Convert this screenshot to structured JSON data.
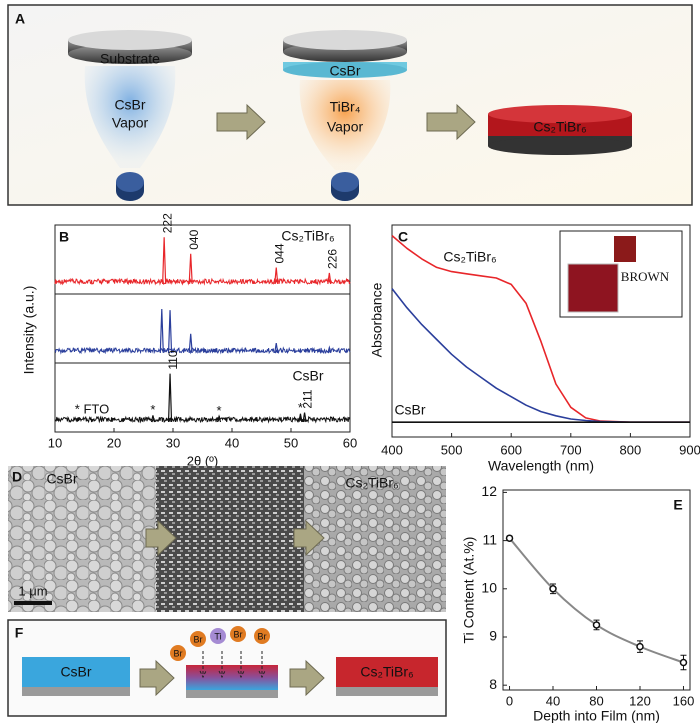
{
  "panel_a": {
    "label": "A",
    "substrate": "Substrate",
    "vapor_1": [
      "CsBr",
      "Vapor"
    ],
    "layer": "CsBr",
    "vapor_2": [
      "TiBr₄",
      "Vapor"
    ],
    "product": "Cs₂TiBr₆"
  },
  "panel_b": {
    "label": "B",
    "type": "line",
    "x_label": "2θ (º)",
    "y_label": "Intensity (a.u.)",
    "xlim": [
      10,
      60
    ],
    "xticks": [
      10,
      20,
      30,
      40,
      50,
      60
    ],
    "note": "* FTO",
    "traces": [
      {
        "name": "Cs₂TiBr₆",
        "color": "#e8262a",
        "peaks": [
          {
            "x": 28.5,
            "height": 0.85,
            "label": "222"
          },
          {
            "x": 33.0,
            "height": 0.55,
            "label": "040"
          },
          {
            "x": 47.5,
            "height": 0.3,
            "label": "044"
          },
          {
            "x": 56.5,
            "height": 0.2,
            "label": "226"
          }
        ]
      },
      {
        "color": "#2b3f9c",
        "peaks": [
          {
            "x": 28.1,
            "height": 0.8
          },
          {
            "x": 29.5,
            "height": 0.78
          },
          {
            "x": 33.0,
            "height": 0.35
          },
          {
            "x": 47.5,
            "height": 0.18
          },
          {
            "x": 56.5,
            "height": 0.1
          }
        ]
      },
      {
        "name": "CsBr",
        "color": "#111111",
        "peaks": [
          {
            "x": 26.6,
            "height": 0.12,
            "label": "*"
          },
          {
            "x": 29.5,
            "height": 0.88,
            "label": "110"
          },
          {
            "x": 37.8,
            "height": 0.1,
            "label": "*"
          },
          {
            "x": 51.6,
            "height": 0.15,
            "label": "*"
          },
          {
            "x": 52.3,
            "height": 0.17,
            "label": "211"
          }
        ]
      }
    ]
  },
  "panel_c": {
    "label": "C",
    "type": "line",
    "x_label": "Wavelength (nm)",
    "y_label": "Absorbance",
    "xlim": [
      400,
      900
    ],
    "xticks": [
      400,
      500,
      600,
      700,
      800,
      900
    ],
    "ylim": [
      0,
      1
    ],
    "inset_text": "BROWN",
    "x": [
      400,
      425,
      450,
      475,
      500,
      525,
      550,
      575,
      600,
      625,
      650,
      675,
      700,
      725,
      750,
      800,
      850,
      900
    ],
    "series": [
      {
        "name": "Cs₂TiBr₆",
        "color": "#e8262a",
        "values": [
          0.95,
          0.89,
          0.84,
          0.8,
          0.78,
          0.77,
          0.76,
          0.75,
          0.72,
          0.63,
          0.45,
          0.25,
          0.14,
          0.09,
          0.075,
          0.07,
          0.07,
          0.07
        ]
      },
      {
        "color": "#2b3f9c",
        "values": [
          0.7,
          0.61,
          0.53,
          0.46,
          0.39,
          0.33,
          0.28,
          0.23,
          0.19,
          0.15,
          0.12,
          0.1,
          0.085,
          0.078,
          0.073,
          0.07,
          0.07,
          0.07
        ]
      },
      {
        "name": "CsBr",
        "color": "#111111",
        "values": [
          0.07,
          0.07,
          0.07,
          0.07,
          0.07,
          0.07,
          0.07,
          0.07,
          0.07,
          0.07,
          0.07,
          0.07,
          0.07,
          0.07,
          0.07,
          0.07,
          0.07,
          0.07
        ]
      }
    ]
  },
  "panel_d": {
    "label": "D",
    "left": "CsBr",
    "right": "Cs₂TiBr₆",
    "scale_bar": "1 μm"
  },
  "panel_e": {
    "label": "E",
    "type": "scatter",
    "x_label": "Depth into Film (nm)",
    "y_label": "Ti Content (At.%)",
    "xlim": [
      -6,
      166
    ],
    "xticks": [
      0,
      40,
      80,
      120,
      160
    ],
    "ylim": [
      7.9,
      12.05
    ],
    "yticks": [
      8,
      9,
      10,
      11,
      12
    ],
    "x": [
      0,
      40,
      80,
      120,
      160
    ],
    "values": [
      11.05,
      10.0,
      9.25,
      8.8,
      8.47
    ],
    "errors": [
      0.04,
      0.1,
      0.1,
      0.12,
      0.15
    ]
  },
  "panel_f": {
    "label": "F",
    "left": "CsBr",
    "ions": [
      "Br",
      "Br",
      "Ti",
      "Br",
      "Br"
    ],
    "right": "Cs₂TiBr₆"
  }
}
